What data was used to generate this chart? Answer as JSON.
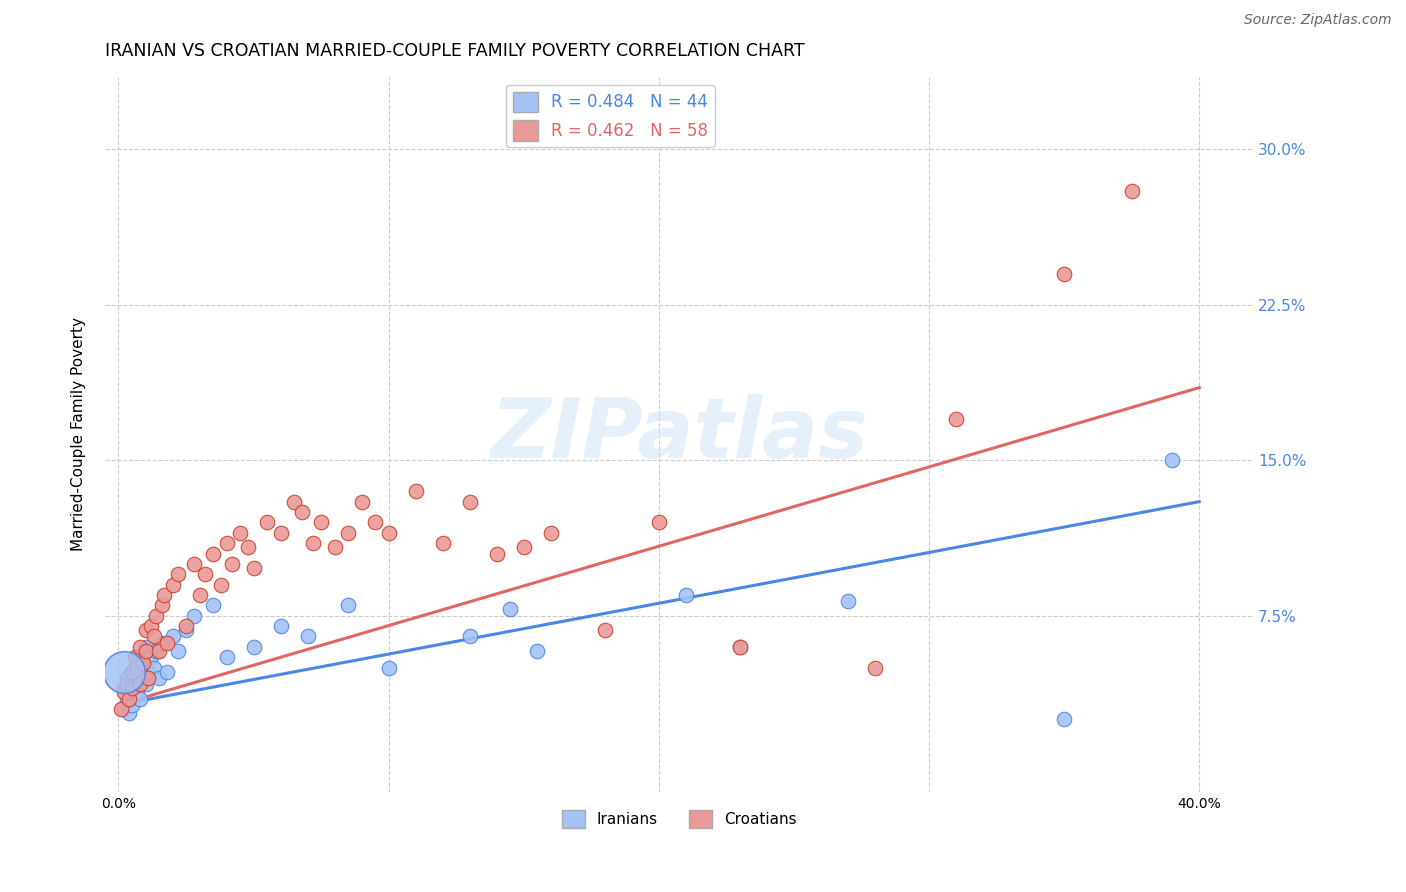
{
  "title": "IRANIAN VS CROATIAN MARRIED-COUPLE FAMILY POVERTY CORRELATION CHART",
  "source": "Source: ZipAtlas.com",
  "ylabel_text": "Married-Couple Family Poverty",
  "xlim": [
    -0.005,
    0.42
  ],
  "ylim": [
    -0.01,
    0.335
  ],
  "watermark": "ZIPatlas",
  "iranian_color": "#a4c2f4",
  "croatian_color": "#ea9999",
  "iranian_color_dark": "#4a86e8",
  "croatian_color_dark": "#cc4125",
  "line_iranian_color": "#4a86e8",
  "line_croatian_color": "#e06666",
  "background_color": "#ffffff",
  "grid_color": "#cccccc",
  "title_fontsize": 12.5,
  "axis_fontsize": 11,
  "tick_fontsize": 10,
  "source_fontsize": 10,
  "iranian_x": [
    0.001,
    0.002,
    0.002,
    0.003,
    0.003,
    0.004,
    0.004,
    0.005,
    0.005,
    0.006,
    0.006,
    0.007,
    0.007,
    0.008,
    0.008,
    0.009,
    0.01,
    0.01,
    0.011,
    0.012,
    0.013,
    0.014,
    0.015,
    0.016,
    0.018,
    0.02,
    0.022,
    0.025,
    0.028,
    0.035,
    0.04,
    0.05,
    0.06,
    0.07,
    0.085,
    0.1,
    0.13,
    0.145,
    0.155,
    0.21,
    0.23,
    0.27,
    0.35,
    0.39
  ],
  "iranian_y": [
    0.025,
    0.03,
    0.04,
    0.035,
    0.045,
    0.038,
    0.028,
    0.032,
    0.048,
    0.042,
    0.05,
    0.038,
    0.055,
    0.045,
    0.035,
    0.052,
    0.042,
    0.06,
    0.048,
    0.055,
    0.05,
    0.058,
    0.045,
    0.062,
    0.048,
    0.065,
    0.058,
    0.068,
    0.075,
    0.08,
    0.055,
    0.06,
    0.07,
    0.065,
    0.08,
    0.05,
    0.065,
    0.078,
    0.058,
    0.085,
    0.06,
    0.082,
    0.025,
    0.15
  ],
  "iranian_size_large_idx": 0,
  "croatian_x": [
    0.001,
    0.002,
    0.003,
    0.004,
    0.005,
    0.005,
    0.006,
    0.007,
    0.008,
    0.008,
    0.009,
    0.01,
    0.01,
    0.011,
    0.012,
    0.013,
    0.014,
    0.015,
    0.016,
    0.017,
    0.018,
    0.02,
    0.022,
    0.025,
    0.028,
    0.03,
    0.032,
    0.035,
    0.038,
    0.04,
    0.042,
    0.045,
    0.048,
    0.05,
    0.055,
    0.06,
    0.065,
    0.068,
    0.072,
    0.075,
    0.08,
    0.085,
    0.09,
    0.095,
    0.1,
    0.11,
    0.12,
    0.13,
    0.14,
    0.15,
    0.16,
    0.18,
    0.2,
    0.23,
    0.28,
    0.31,
    0.35,
    0.375
  ],
  "croatian_y": [
    0.03,
    0.038,
    0.042,
    0.035,
    0.048,
    0.04,
    0.055,
    0.05,
    0.042,
    0.06,
    0.052,
    0.058,
    0.068,
    0.045,
    0.07,
    0.065,
    0.075,
    0.058,
    0.08,
    0.085,
    0.062,
    0.09,
    0.095,
    0.07,
    0.1,
    0.085,
    0.095,
    0.105,
    0.09,
    0.11,
    0.1,
    0.115,
    0.108,
    0.098,
    0.12,
    0.115,
    0.13,
    0.125,
    0.11,
    0.12,
    0.108,
    0.115,
    0.13,
    0.12,
    0.115,
    0.135,
    0.11,
    0.13,
    0.105,
    0.108,
    0.115,
    0.068,
    0.12,
    0.06,
    0.05,
    0.17,
    0.24,
    0.28
  ],
  "iran_line_x0": 0.0,
  "iran_line_x1": 0.4,
  "iran_line_y0": 0.032,
  "iran_line_y1": 0.13,
  "croat_line_x0": 0.0,
  "croat_line_x1": 0.4,
  "croat_line_y0": 0.032,
  "croat_line_y1": 0.185
}
